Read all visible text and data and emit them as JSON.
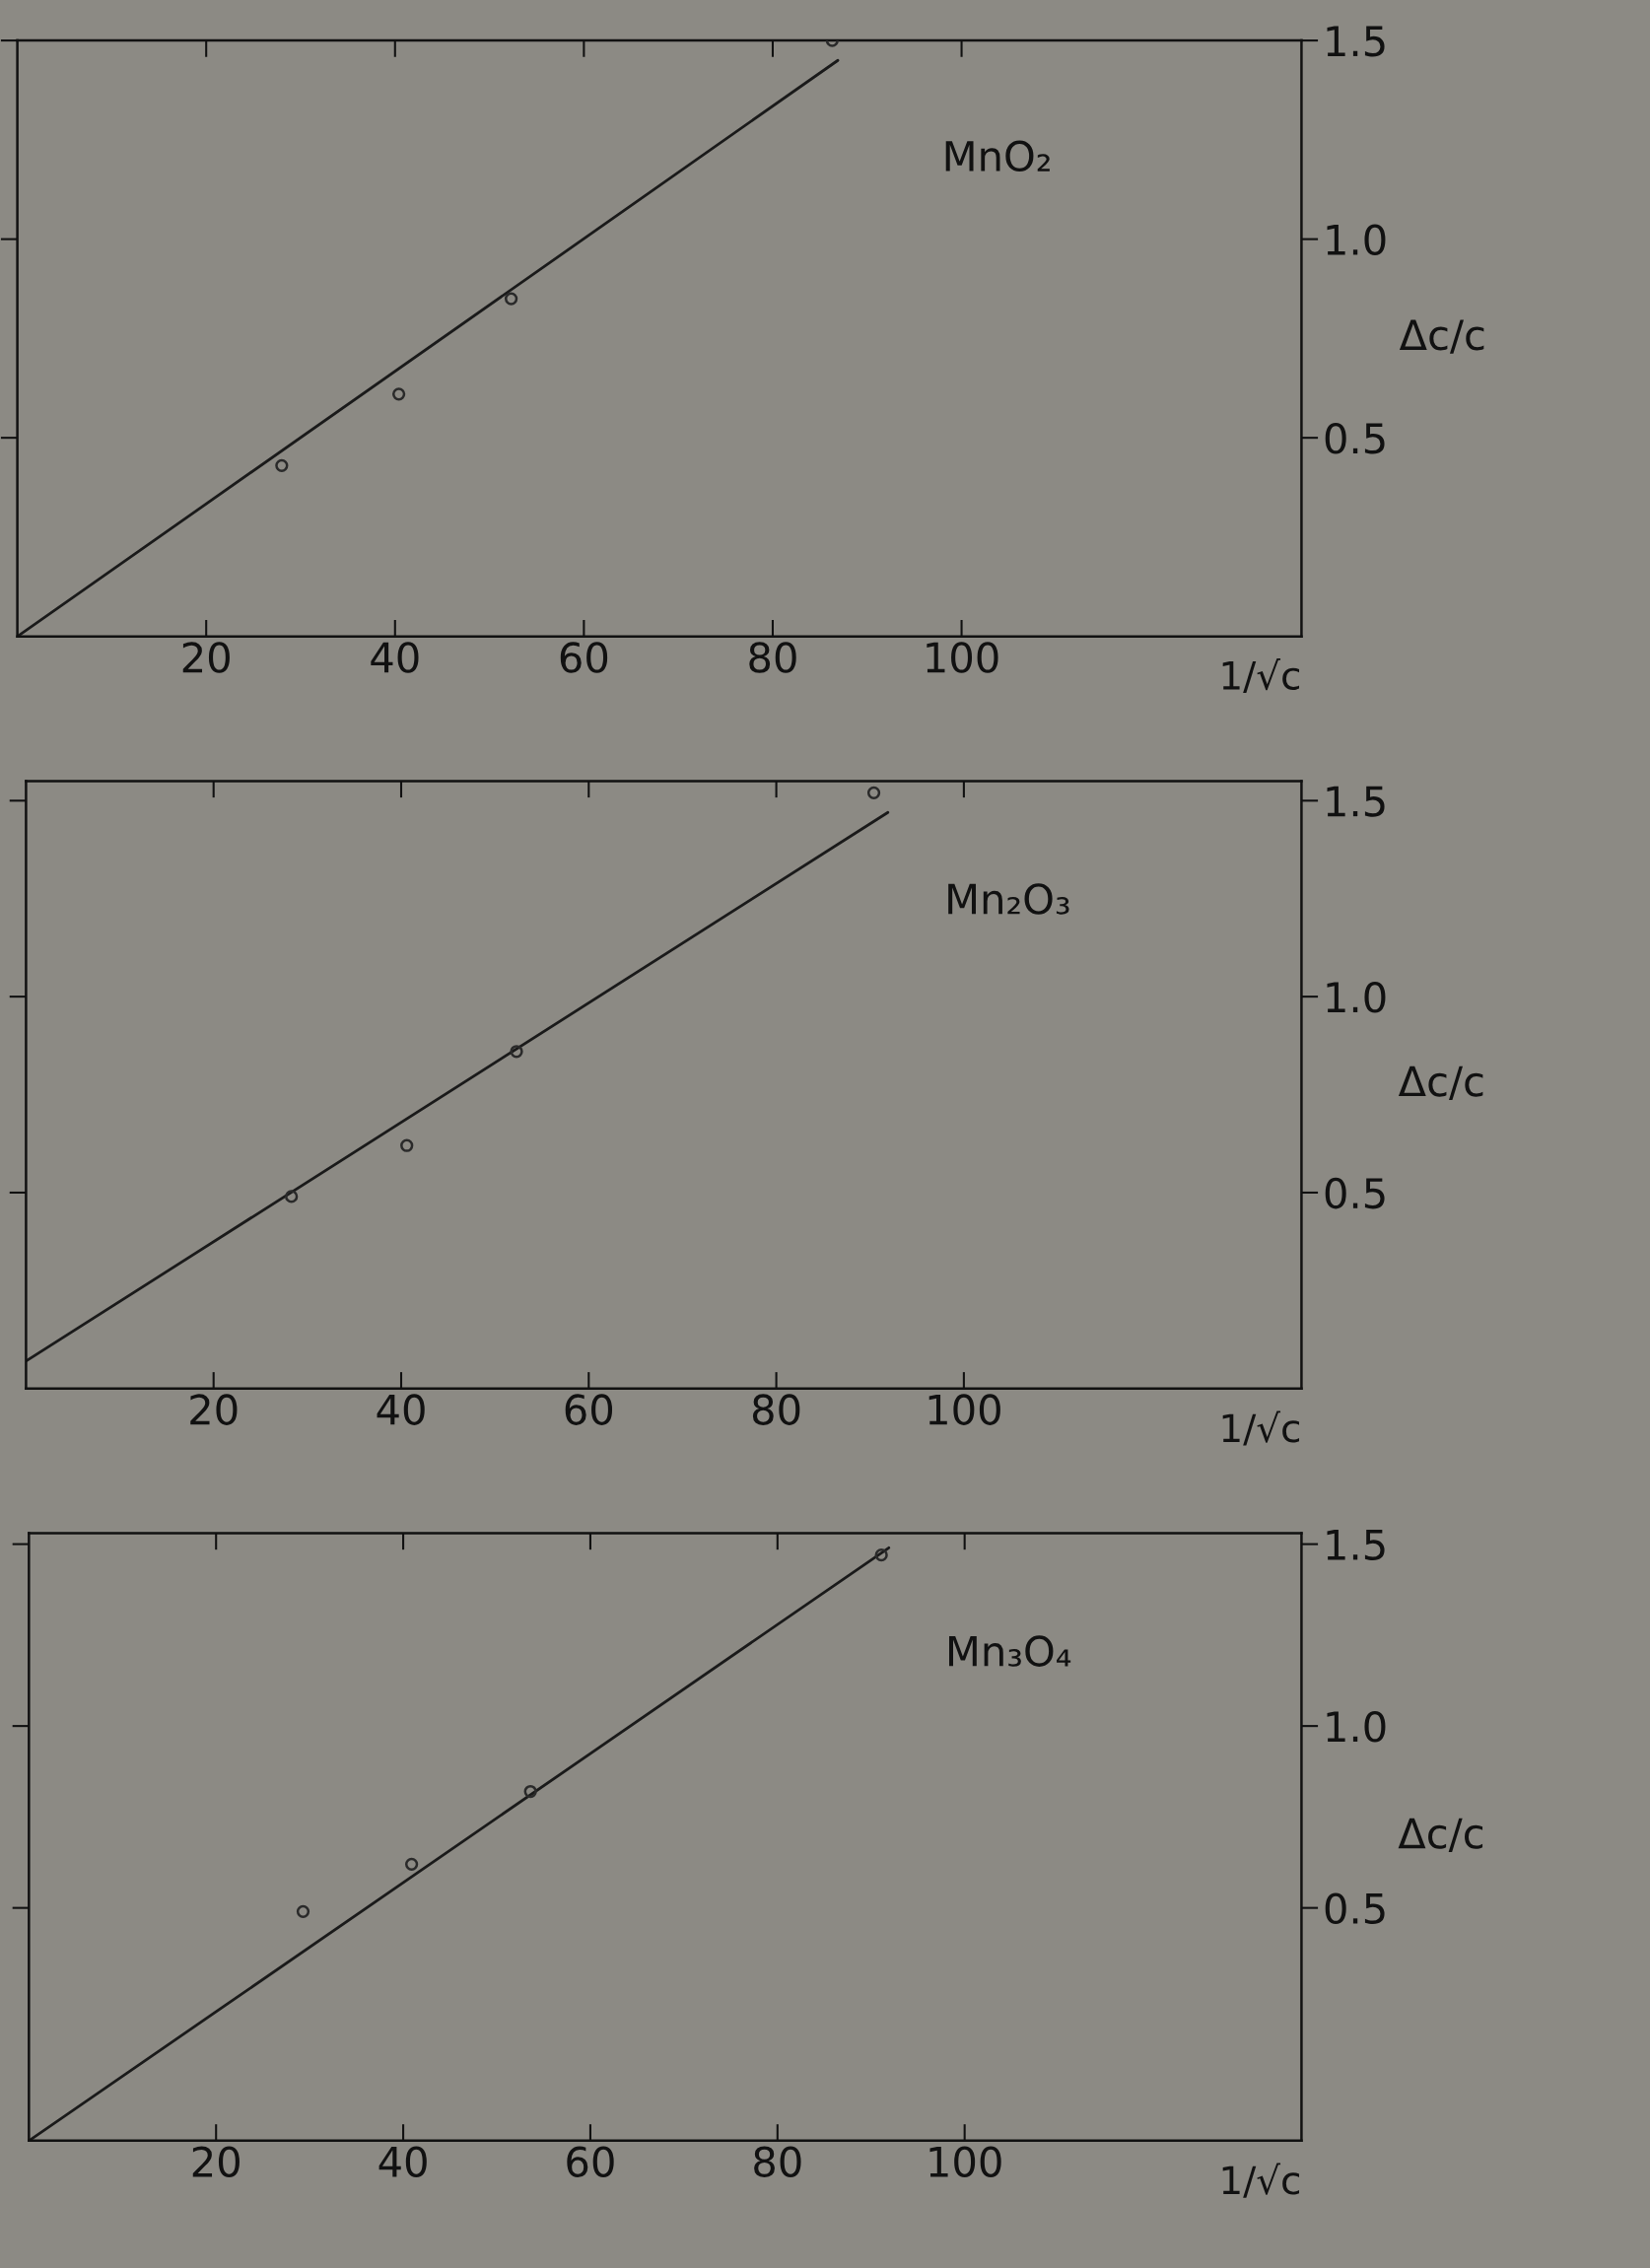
{
  "chart_data": [
    {
      "type": "scatter",
      "xlabel": "1/√c",
      "ylabel": "Δc/c",
      "xlim": [
        0,
        136
      ],
      "ylim": [
        0,
        1.5
      ],
      "xticks": [
        20,
        40,
        60,
        80,
        100
      ],
      "yticks": [
        {
          "value": 0.5,
          "label": "0.5"
        },
        {
          "value": 1.0,
          "label": "1.0"
        },
        {
          "value": 1.5,
          "label": "1.5"
        }
      ],
      "annotations": [
        "MnO₂"
      ],
      "series": [
        {
          "marker": "circle",
          "color": "#2a2a2a",
          "x": [
            28,
            40.4,
            52.3,
            86.3
          ],
          "values": [
            0.43,
            0.61,
            0.85,
            1.5
          ]
        },
        {
          "type": "line",
          "color": "#1a1a1a",
          "x": [
            0,
            86.9
          ],
          "values": [
            0,
            1.45
          ]
        }
      ]
    },
    {
      "type": "scatter",
      "xlabel": "1/√c",
      "ylabel": "Δc/c",
      "xlim": [
        0,
        136
      ],
      "ylim": [
        0,
        1.55
      ],
      "xticks": [
        20,
        40,
        60,
        80,
        100
      ],
      "yticks": [
        {
          "value": 0.5,
          "label": "0.5"
        },
        {
          "value": 1.0,
          "label": "1.0"
        },
        {
          "value": 1.5,
          "label": "1.5"
        }
      ],
      "annotations": [
        "Mn₂O₃"
      ],
      "series": [
        {
          "marker": "circle",
          "color": "#2a2a2a",
          "x": [
            28.3,
            40.6,
            52.3,
            90.4
          ],
          "values": [
            0.49,
            0.62,
            0.86,
            1.52
          ]
        },
        {
          "type": "line",
          "color": "#1a1a1a",
          "x": [
            0,
            91.9
          ],
          "values": [
            0.07,
            1.47
          ]
        }
      ]
    },
    {
      "type": "scatter",
      "xlabel": "1/√c",
      "ylabel": "Δc/c",
      "xlim": [
        0,
        136
      ],
      "ylim": [
        -0.14,
        1.53
      ],
      "xticks": [
        20,
        40,
        60,
        80,
        100
      ],
      "yticks": [
        {
          "value": 0.5,
          "label": "0.5"
        },
        {
          "value": 1.0,
          "label": "1.0"
        },
        {
          "value": 1.5,
          "label": "1.5"
        }
      ],
      "annotations": [
        "Mn₃O₄"
      ],
      "series": [
        {
          "marker": "circle",
          "color": "#2a2a2a",
          "x": [
            29.3,
            40.9,
            53.6,
            91.1
          ],
          "values": [
            0.49,
            0.62,
            0.82,
            1.47
          ]
        },
        {
          "type": "line",
          "color": "#1a1a1a",
          "x": [
            0,
            91.9
          ],
          "values": [
            -0.14,
            1.49
          ]
        }
      ]
    }
  ]
}
